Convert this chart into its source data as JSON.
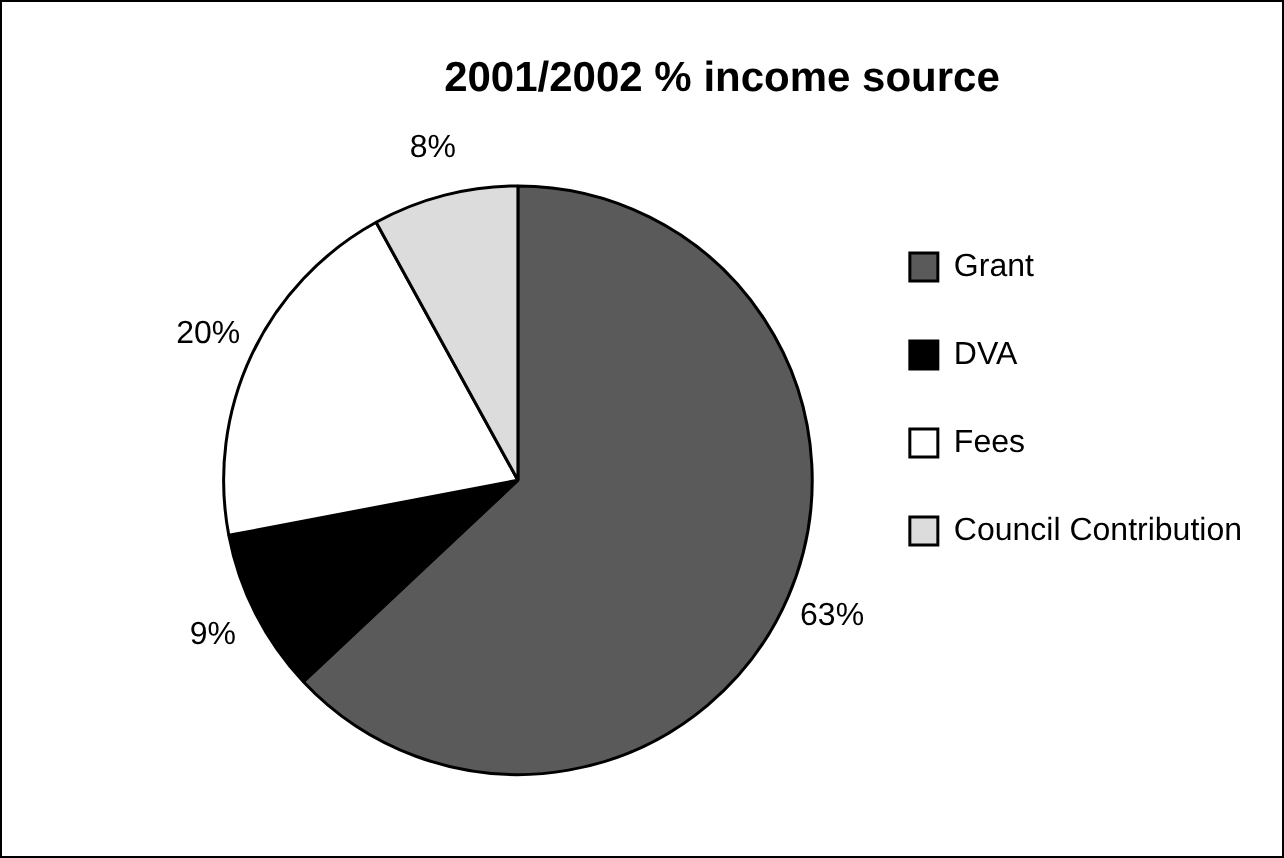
{
  "chart_data": {
    "type": "pie",
    "title": "2001/2002 % income source",
    "categories": [
      "Grant",
      "DVA",
      "Fees",
      "Council Contribution"
    ],
    "values": [
      63,
      9,
      20,
      8
    ],
    "colors": [
      "#5a5a5a",
      "#000000",
      "#ffffff",
      "#dcdcdc"
    ],
    "value_labels": [
      "63%",
      "9%",
      "20%",
      "8%"
    ],
    "legend": "right"
  }
}
